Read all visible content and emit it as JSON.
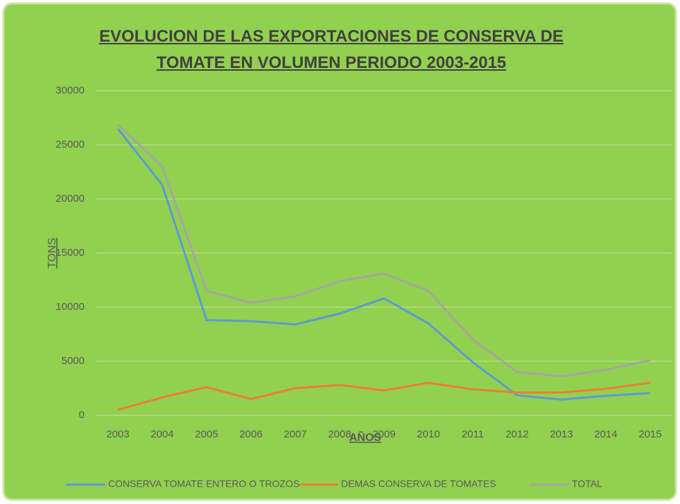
{
  "chart_data": {
    "type": "line",
    "title": "EVOLUCION DE LAS EXPORTACIONES DE CONSERVA DE TOMATE EN VOLUMEN PERIODO 2003-2015",
    "x_label": "AÑOS",
    "y_label": "TONS",
    "categories": [
      "2003",
      "2004",
      "2005",
      "2006",
      "2007",
      "2008",
      "2009",
      "2010",
      "2011",
      "2012",
      "2013",
      "2014",
      "2015"
    ],
    "series": [
      {
        "name": "CONSERVA TOMATE ENTERO O TROZOS",
        "color": "#5b9bd5",
        "values": [
          26500,
          21300,
          8800,
          8700,
          8400,
          9400,
          10800,
          8500,
          4900,
          1850,
          1450,
          1800,
          2050
        ]
      },
      {
        "name": "DEMAS CONSERVA DE TOMATES",
        "color": "#ed7d31",
        "values": [
          500,
          1650,
          2600,
          1500,
          2500,
          2800,
          2300,
          3000,
          2400,
          2100,
          2100,
          2450,
          3000
        ]
      },
      {
        "name": "TOTAL",
        "color": "#a5a5a5",
        "values": [
          26900,
          23000,
          11500,
          10400,
          11000,
          12400,
          13100,
          11500,
          7000,
          4000,
          3600,
          4200,
          5100
        ]
      }
    ],
    "ylim": [
      0,
      30000
    ],
    "yticks": [
      0,
      5000,
      10000,
      15000,
      20000,
      25000,
      30000
    ],
    "grid": true,
    "legend": "bottom"
  }
}
